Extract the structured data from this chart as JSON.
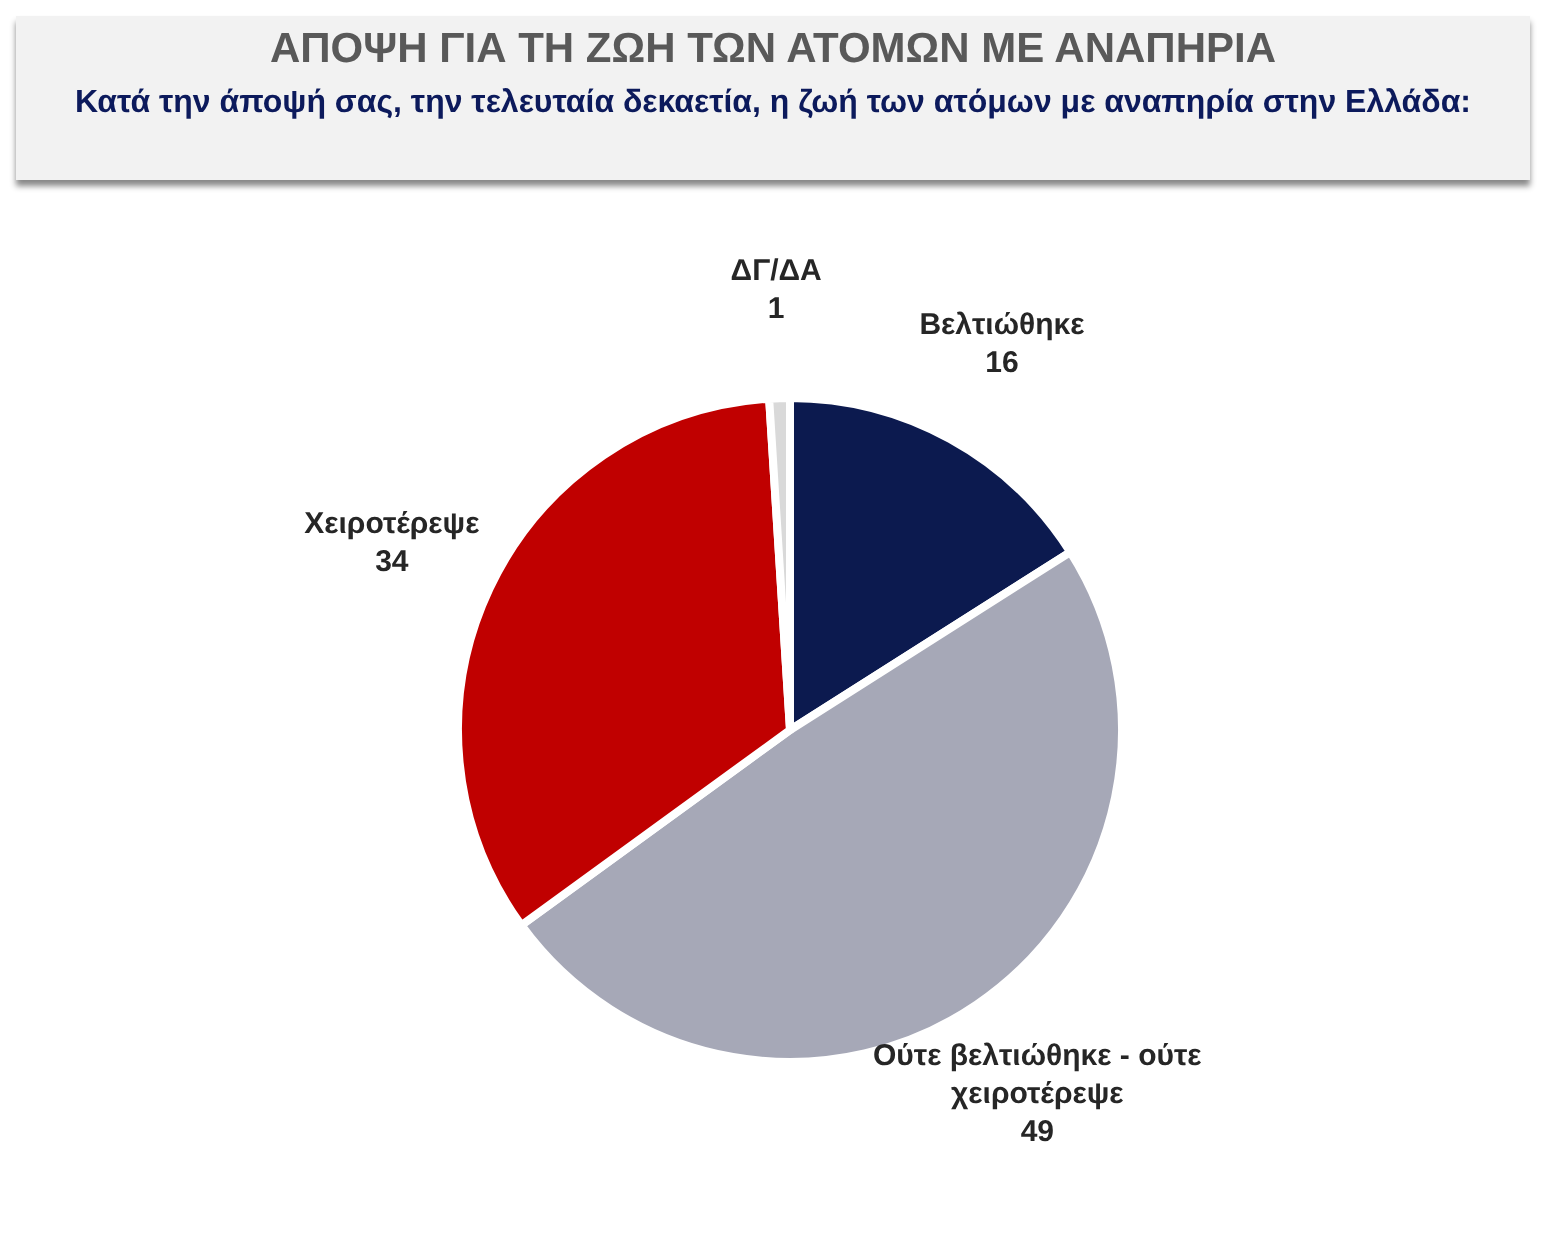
{
  "chart_data": {
    "type": "pie",
    "title": "ΑΠΟΨΗ ΓΙΑ ΤΗ ΖΩΗ ΤΩΝ ΑΤΟΜΩΝ ΜΕ ΑΝΑΠΗΡΙΑ",
    "subtitle": "Κατά την άποψή σας, την τελευταία δεκαετία, η ζωή των ατόμων με αναπηρία στην Ελλάδα:",
    "categories": [
      "Βελτιώθηκε",
      "Ούτε βελτιώθηκε - ούτε χειροτέρεψε",
      "Χειροτέρεψε",
      "ΔΓ/ΔΑ"
    ],
    "values": [
      16,
      49,
      34,
      1
    ],
    "colors": [
      "#0c1a4f",
      "#a6a8b7",
      "#c00000",
      "#d9d9d9"
    ],
    "data_labels": true
  }
}
